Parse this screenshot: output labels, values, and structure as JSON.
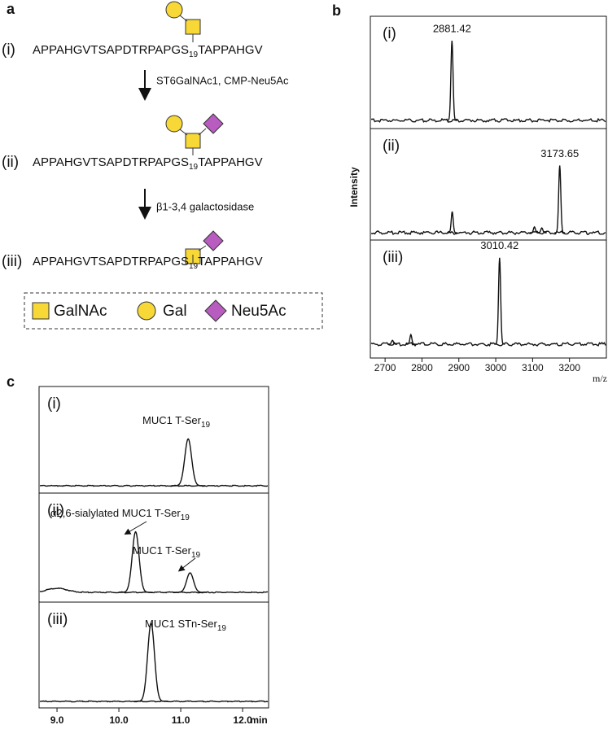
{
  "panel_a": {
    "label": "a",
    "steps": [
      {
        "roman": "(i)",
        "sequence": [
          "APPAHGVTSAPDTRPAPGS",
          "19",
          "TAPPAHGV"
        ]
      },
      {
        "roman": "(ii)",
        "sequence": [
          "APPAHGVTSAPDTRPAPGS",
          "19",
          "TAPPAHGV"
        ]
      },
      {
        "roman": "(iii)",
        "sequence": [
          "APPAHGVTSAPDTRPAPGS",
          "19",
          "TAPPAHGV"
        ]
      }
    ],
    "reactions": [
      "ST6GalNAc1, CMP-Neu5Ac",
      "β1-3,4 galactosidase"
    ],
    "legend": [
      "GalNAc",
      "Gal",
      "Neu5Ac"
    ]
  },
  "panel_b": {
    "label": "b",
    "y_label": "Intensity",
    "x_label": "m/z",
    "xlim": [
      2660,
      3300
    ],
    "xticks": [
      2700,
      2800,
      2900,
      3000,
      3100,
      3200
    ],
    "traces": [
      {
        "roman": "(i)",
        "peak": {
          "x": 2881.42,
          "height": 0.83
        },
        "minor_peaks": []
      },
      {
        "roman": "(ii)",
        "peak": {
          "x": 3173.65,
          "height": 0.7
        },
        "minor_peaks": [
          {
            "x": 2882,
            "height": 0.22
          },
          {
            "x": 3105,
            "height": 0.06
          },
          {
            "x": 3125,
            "height": 0.05
          }
        ]
      },
      {
        "roman": "(iii)",
        "peak": {
          "x": 3010.42,
          "height": 0.9
        },
        "minor_peaks": [
          {
            "x": 2720,
            "height": 0.04
          },
          {
            "x": 2770,
            "height": 0.1
          }
        ]
      }
    ]
  },
  "panel_c": {
    "label": "c",
    "x_label": "min",
    "xlim": [
      8.71,
      12.42
    ],
    "xticks": [
      {
        "value": 9,
        "label": "9.0"
      },
      {
        "value": 10,
        "label": "10.0"
      },
      {
        "value": 11,
        "label": "11.0"
      },
      {
        "value": 12,
        "label": "12.0"
      }
    ],
    "traces": [
      {
        "roman": "(i)",
        "peaks": [
          {
            "x": 11.12,
            "height": 0.48,
            "annotation": [
              "MUC1 T-Ser",
              "19"
            ]
          }
        ]
      },
      {
        "roman": "(ii)",
        "peaks": [
          {
            "x": 10.27,
            "height": 0.62,
            "annotation": [
              "α2,6-sialylated MUC1 T-Ser",
              "19"
            ]
          },
          {
            "x": 11.15,
            "height": 0.2,
            "annotation": [
              "MUC1 T-Ser",
              "19"
            ]
          }
        ]
      },
      {
        "roman": "(iii)",
        "peaks": [
          {
            "x": 10.52,
            "height": 0.8,
            "annotation": [
              "MUC1 STn-Ser",
              "19"
            ]
          }
        ]
      }
    ]
  }
}
